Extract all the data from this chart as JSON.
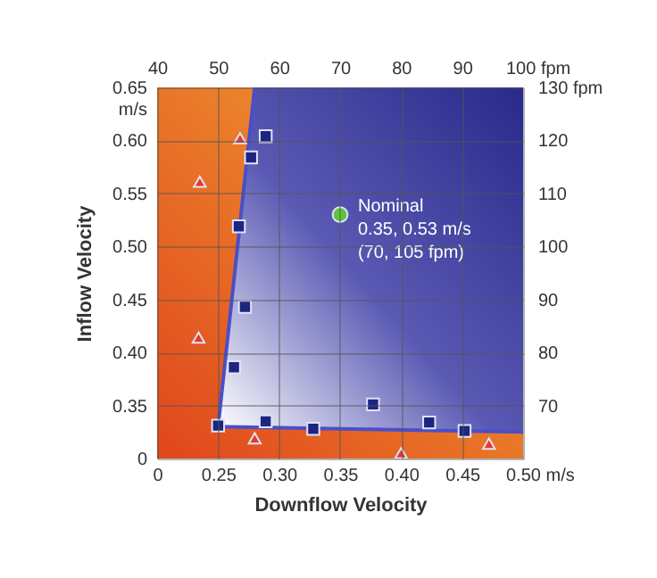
{
  "chart_data": {
    "type": "scatter",
    "xlabel": "Downflow Velocity",
    "ylabel": "Inflow Velocity",
    "xlim": [
      0.2,
      0.5
    ],
    "xticks": [
      {
        "value": 0.2,
        "label": "0"
      },
      {
        "value": 0.25,
        "label": "0.25"
      },
      {
        "value": 0.3,
        "label": "0.30"
      },
      {
        "value": 0.35,
        "label": "0.35"
      },
      {
        "value": 0.4,
        "label": "0.40"
      },
      {
        "value": 0.45,
        "label": "0.45"
      },
      {
        "value": 0.5,
        "label": "0.50 m/s"
      }
    ],
    "ylim": [
      0.3,
      0.65
    ],
    "yticks": [
      {
        "value": 0.3,
        "label": "0"
      },
      {
        "value": 0.35,
        "label": "0.35"
      },
      {
        "value": 0.4,
        "label": "0.40"
      },
      {
        "value": 0.45,
        "label": "0.45"
      },
      {
        "value": 0.5,
        "label": "0.50"
      },
      {
        "value": 0.55,
        "label": "0.55"
      },
      {
        "value": 0.6,
        "label": "0.60"
      },
      {
        "value": 0.65,
        "label": "0.65 m/s"
      }
    ],
    "x2lim": [
      40,
      100
    ],
    "x2ticks": [
      40,
      50,
      60,
      70,
      80,
      90,
      {
        "value": 100,
        "label": "100 fpm"
      }
    ],
    "y2lim": [
      60,
      130
    ],
    "y2ticks": [
      70,
      80,
      90,
      100,
      110,
      120,
      {
        "value": 130,
        "label": "130 fpm"
      }
    ],
    "grid": true,
    "series": [
      {
        "type": "line",
        "color": "#4a4fc8",
        "marker": "none",
        "x": [
          0.28,
          0.25,
          0.5
        ],
        "values": [
          0.65,
          0.33,
          0.325
        ]
      },
      {
        "type": "scatter",
        "color": "#1c2580",
        "marker": "square",
        "x": [
          0.25,
          0.263,
          0.272,
          0.289,
          0.328,
          0.377,
          0.423,
          0.452,
          0.267,
          0.277,
          0.289
        ],
        "values": [
          0.331,
          0.386,
          0.443,
          0.335,
          0.328,
          0.351,
          0.334,
          0.326,
          0.519,
          0.584,
          0.604
        ]
      },
      {
        "type": "scatter",
        "color": "#e8392b",
        "marker": "triangle",
        "x": [
          0.268,
          0.235,
          0.234,
          0.28,
          0.4,
          0.472
        ],
        "values": [
          0.602,
          0.561,
          0.414,
          0.319,
          0.305,
          0.314
        ]
      },
      {
        "color": "#5cc63c",
        "marker": "circle",
        "x": [
          0.35
        ],
        "values": [
          0.53
        ]
      }
    ],
    "annotations": [
      {
        "text": "Nominal\n0.35, 0.53 m/s\n(70, 105 fpm)",
        "x": 0.35,
        "y": 0.53
      }
    ]
  }
}
